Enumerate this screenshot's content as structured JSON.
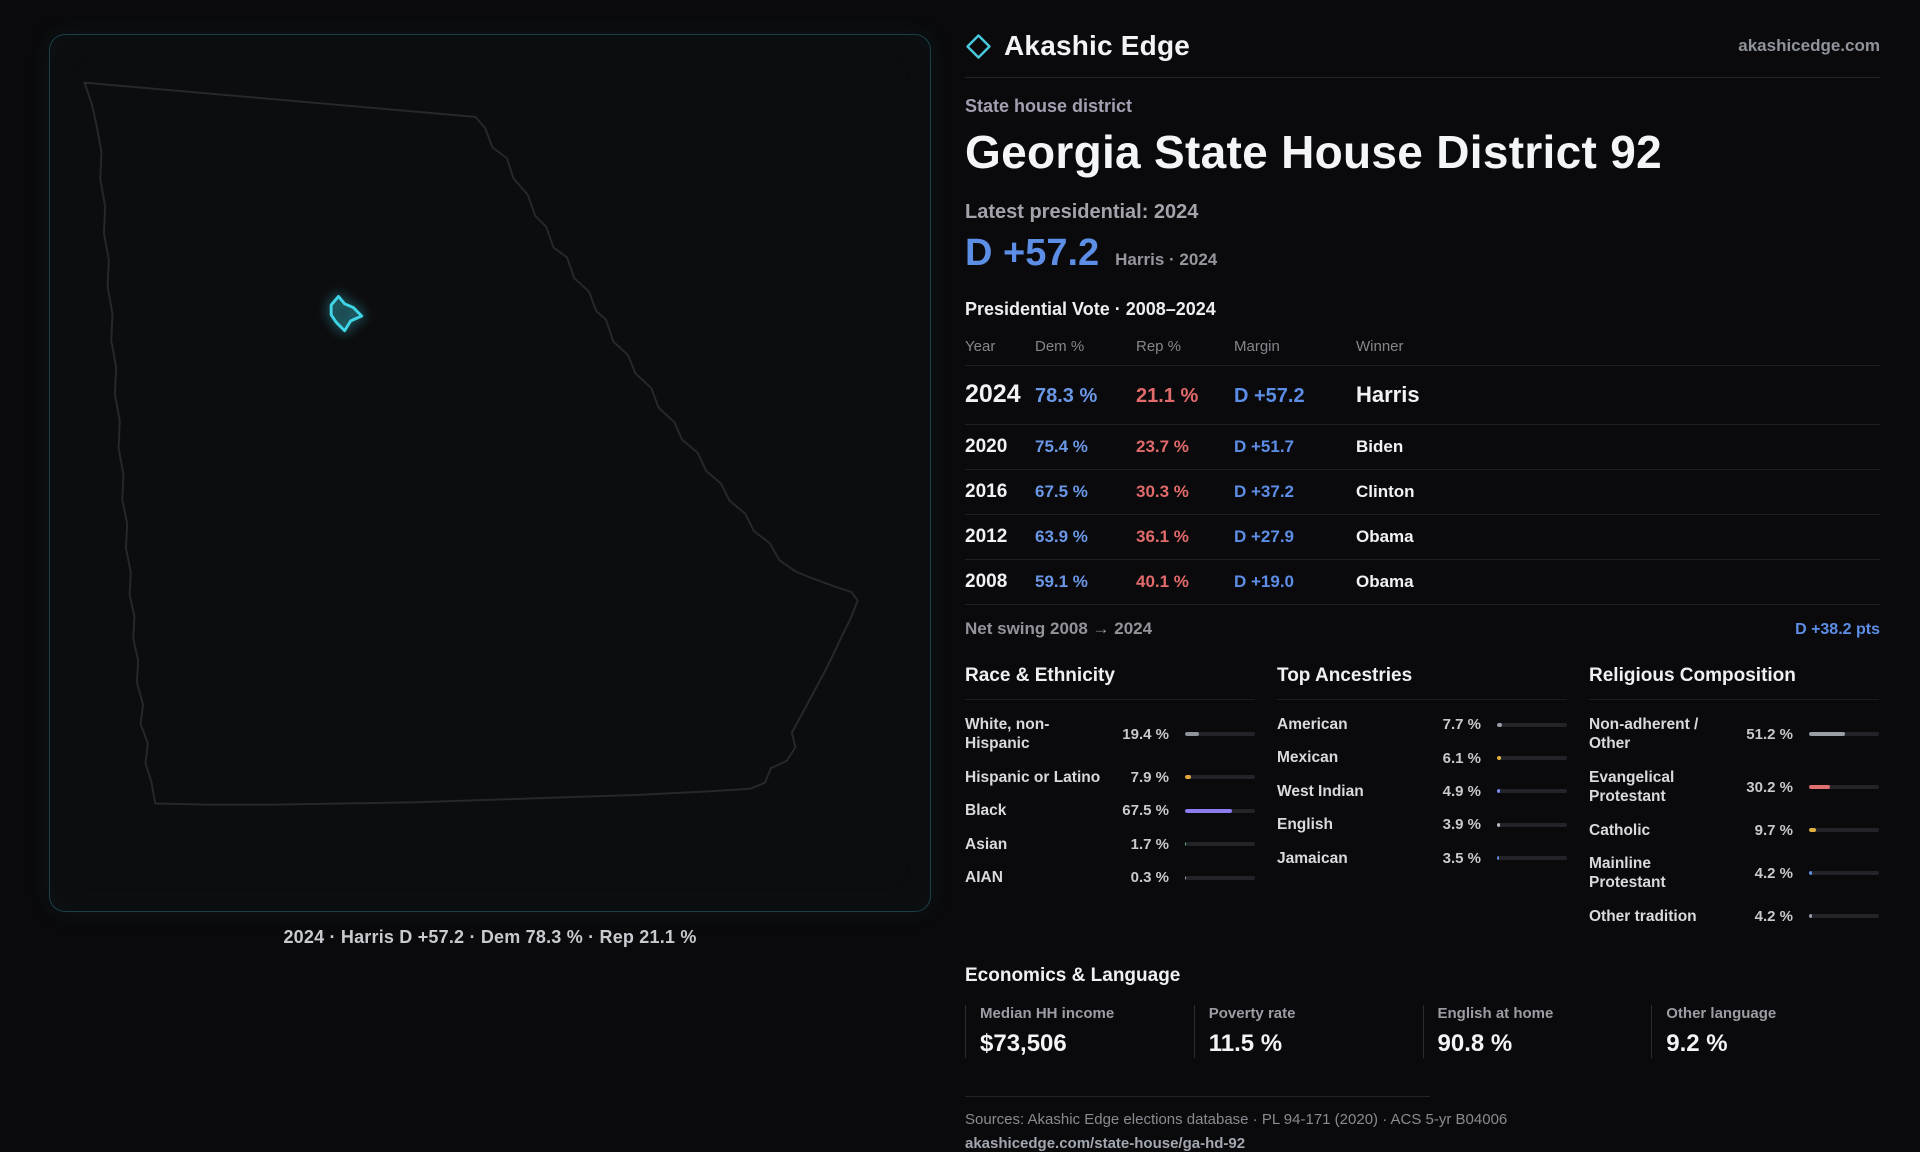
{
  "brand": {
    "name": "Akashic Edge",
    "site": "akashicedge.com"
  },
  "map": {
    "caption": "2024 · Harris D +57.2 · Dem 78.3 % · Rep 21.1 %"
  },
  "profile": {
    "kicker": "State house district",
    "title": "Georgia State House District 92",
    "latest_label": "Latest presidential: 2024",
    "margin_headline": "D +57.2",
    "margin_sub": "Harris · 2024"
  },
  "vote_table": {
    "title": "Presidential Vote · 2008–2024",
    "columns": [
      "Year",
      "Dem %",
      "Rep %",
      "Margin",
      "Winner"
    ],
    "rows": [
      {
        "year": "2024",
        "dem": "78.3 %",
        "rep": "21.1 %",
        "margin": "D +57.2",
        "winner": "Harris"
      },
      {
        "year": "2020",
        "dem": "75.4 %",
        "rep": "23.7 %",
        "margin": "D +51.7",
        "winner": "Biden"
      },
      {
        "year": "2016",
        "dem": "67.5 %",
        "rep": "30.3 %",
        "margin": "D +37.2",
        "winner": "Clinton"
      },
      {
        "year": "2012",
        "dem": "63.9 %",
        "rep": "36.1 %",
        "margin": "D +27.9",
        "winner": "Obama"
      },
      {
        "year": "2008",
        "dem": "59.1 %",
        "rep": "40.1 %",
        "margin": "D +19.0",
        "winner": "Obama"
      }
    ],
    "net_swing_label": "Net swing 2008 → 2024",
    "net_swing_value": "D +38.2 pts"
  },
  "chart_data": [
    {
      "type": "bar",
      "title": "Race & Ethnicity",
      "categories": [
        "White, non-Hispanic",
        "Hispanic or Latino",
        "Black",
        "Asian",
        "AIAN"
      ],
      "values": [
        19.4,
        7.9,
        67.5,
        1.7,
        0.3
      ],
      "xlim": [
        0,
        100
      ]
    },
    {
      "type": "bar",
      "title": "Top Ancestries",
      "categories": [
        "American",
        "Mexican",
        "West Indian",
        "English",
        "Jamaican"
      ],
      "values": [
        7.7,
        6.1,
        4.9,
        3.9,
        3.5
      ],
      "xlim": [
        0,
        100
      ]
    },
    {
      "type": "bar",
      "title": "Religious Composition",
      "categories": [
        "Non-adherent / Other",
        "Evangelical Protestant",
        "Catholic",
        "Mainline Protestant",
        "Other tradition"
      ],
      "values": [
        51.2,
        30.2,
        9.7,
        4.2,
        4.2
      ],
      "xlim": [
        0,
        100
      ]
    }
  ],
  "demographics": {
    "race": {
      "title": "Race & Ethnicity",
      "items": [
        {
          "label": "White, non-Hispanic",
          "value": "19.4 %",
          "pct": 19.4,
          "color": "#8e949c"
        },
        {
          "label": "Hispanic or Latino",
          "value": "7.9 %",
          "pct": 7.9,
          "color": "#e2a43c"
        },
        {
          "label": "Black",
          "value": "67.5 %",
          "pct": 67.5,
          "color": "#8b7cf0"
        },
        {
          "label": "Asian",
          "value": "1.7 %",
          "pct": 1.7,
          "color": "#63c08b"
        },
        {
          "label": "AIAN",
          "value": "0.3 %",
          "pct": 0.3,
          "color": "#9aa0a8"
        }
      ]
    },
    "ancestries": {
      "title": "Top Ancestries",
      "items": [
        {
          "label": "American",
          "value": "7.7 %",
          "pct": 7.7,
          "color": "#979ea6"
        },
        {
          "label": "Mexican",
          "value": "6.1 %",
          "pct": 6.1,
          "color": "#e2b13c"
        },
        {
          "label": "West Indian",
          "value": "4.9 %",
          "pct": 4.9,
          "color": "#7d8cf0"
        },
        {
          "label": "English",
          "value": "3.9 %",
          "pct": 3.9,
          "color": "#b9bec6"
        },
        {
          "label": "Jamaican",
          "value": "3.5 %",
          "pct": 3.5,
          "color": "#5f8ee0"
        }
      ]
    },
    "religion": {
      "title": "Religious Composition",
      "items": [
        {
          "label": "Non-adherent / Other",
          "value": "51.2 %",
          "pct": 51.2,
          "color": "#9aa0a8"
        },
        {
          "label": "Evangelical Protestant",
          "value": "30.2 %",
          "pct": 30.2,
          "color": "#e07070"
        },
        {
          "label": "Catholic",
          "value": "9.7 %",
          "pct": 9.7,
          "color": "#e2b13c"
        },
        {
          "label": "Mainline Protestant",
          "value": "4.2 %",
          "pct": 4.2,
          "color": "#5f8ee0"
        },
        {
          "label": "Other tradition",
          "value": "4.2 %",
          "pct": 4.2,
          "color": "#9aa0a8"
        }
      ]
    }
  },
  "economics": {
    "title": "Economics & Language",
    "stats": [
      {
        "label": "Median HH income",
        "value": "$73,506"
      },
      {
        "label": "Poverty rate",
        "value": "11.5 %"
      },
      {
        "label": "English at home",
        "value": "90.8 %"
      },
      {
        "label": "Other language",
        "value": "9.2 %"
      }
    ]
  },
  "footer": {
    "sources": "Sources: Akashic Edge elections database · PL 94-171 (2020) · ACS 5-yr B04006",
    "permalink": "akashicedge.com/state-house/ga-hd-92"
  }
}
